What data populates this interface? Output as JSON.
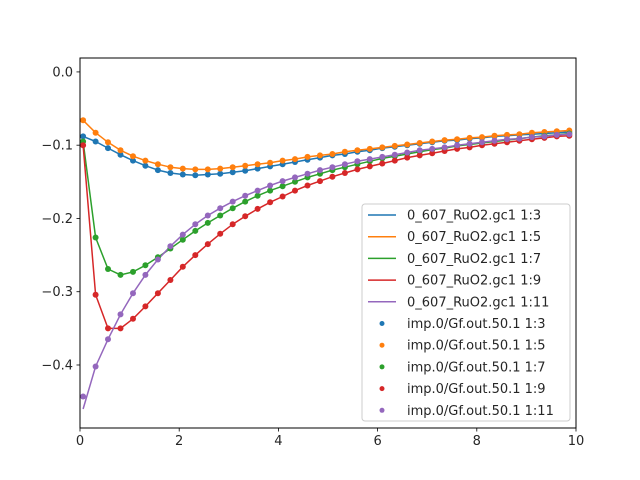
{
  "chart_data": {
    "type": "line",
    "title": "",
    "xlabel": "",
    "ylabel": "",
    "xlim": [
      0,
      10
    ],
    "ylim": [
      -0.486,
      0.019
    ],
    "grid": false,
    "legend_position": "lower-right",
    "xticks": [
      0,
      2,
      4,
      6,
      8,
      10
    ],
    "xtick_labels": [
      "0",
      "2",
      "4",
      "6",
      "8",
      "10"
    ],
    "yticks": [
      0.0,
      -0.1,
      -0.2,
      -0.3,
      -0.4
    ],
    "ytick_labels": [
      "0.0",
      "−0.1",
      "−0.2",
      "−0.3",
      "−0.4"
    ],
    "x": [
      0.063,
      0.314,
      0.565,
      0.817,
      1.068,
      1.319,
      1.571,
      1.822,
      2.073,
      2.325,
      2.576,
      2.827,
      3.079,
      3.33,
      3.581,
      3.833,
      4.084,
      4.335,
      4.587,
      4.838,
      5.089,
      5.341,
      5.592,
      5.843,
      6.095,
      6.346,
      6.597,
      6.849,
      7.1,
      7.351,
      7.603,
      7.854,
      8.105,
      8.357,
      8.608,
      8.859,
      9.111,
      9.362,
      9.613,
      9.865
    ],
    "series": [
      {
        "name": "0_607_RuO2.gc1 1:3",
        "style": "line",
        "color": "#1f77b4",
        "values": [
          -0.088,
          -0.095,
          -0.104,
          -0.113,
          -0.121,
          -0.128,
          -0.134,
          -0.138,
          -0.14,
          -0.141,
          -0.14,
          -0.139,
          -0.137,
          -0.135,
          -0.132,
          -0.129,
          -0.126,
          -0.123,
          -0.12,
          -0.117,
          -0.114,
          -0.112,
          -0.109,
          -0.107,
          -0.104,
          -0.102,
          -0.1,
          -0.098,
          -0.096,
          -0.094,
          -0.093,
          -0.091,
          -0.09,
          -0.088,
          -0.087,
          -0.086,
          -0.085,
          -0.084,
          -0.083,
          -0.082
        ]
      },
      {
        "name": "0_607_RuO2.gc1 1:5",
        "style": "line",
        "color": "#ff7f0e",
        "values": [
          -0.066,
          -0.083,
          -0.096,
          -0.107,
          -0.115,
          -0.121,
          -0.126,
          -0.13,
          -0.132,
          -0.133,
          -0.133,
          -0.132,
          -0.13,
          -0.128,
          -0.126,
          -0.124,
          -0.121,
          -0.119,
          -0.116,
          -0.114,
          -0.112,
          -0.109,
          -0.107,
          -0.105,
          -0.103,
          -0.101,
          -0.099,
          -0.097,
          -0.095,
          -0.093,
          -0.092,
          -0.09,
          -0.089,
          -0.087,
          -0.086,
          -0.085,
          -0.083,
          -0.082,
          -0.081,
          -0.08
        ]
      },
      {
        "name": "0_607_RuO2.gc1 1:7",
        "style": "line",
        "color": "#2ca02c",
        "values": [
          -0.095,
          -0.226,
          -0.269,
          -0.277,
          -0.273,
          -0.264,
          -0.253,
          -0.241,
          -0.229,
          -0.217,
          -0.206,
          -0.196,
          -0.186,
          -0.177,
          -0.169,
          -0.162,
          -0.156,
          -0.15,
          -0.144,
          -0.139,
          -0.134,
          -0.13,
          -0.126,
          -0.122,
          -0.118,
          -0.115,
          -0.112,
          -0.109,
          -0.106,
          -0.104,
          -0.101,
          -0.099,
          -0.097,
          -0.095,
          -0.093,
          -0.091,
          -0.089,
          -0.087,
          -0.086,
          -0.084
        ]
      },
      {
        "name": "0_607_RuO2.gc1 1:9",
        "style": "line",
        "color": "#d62728",
        "values": [
          -0.1,
          -0.304,
          -0.35,
          -0.35,
          -0.337,
          -0.32,
          -0.302,
          -0.284,
          -0.266,
          -0.25,
          -0.235,
          -0.221,
          -0.208,
          -0.197,
          -0.187,
          -0.178,
          -0.17,
          -0.162,
          -0.155,
          -0.149,
          -0.143,
          -0.138,
          -0.133,
          -0.129,
          -0.125,
          -0.121,
          -0.117,
          -0.114,
          -0.111,
          -0.108,
          -0.105,
          -0.103,
          -0.1,
          -0.098,
          -0.096,
          -0.094,
          -0.092,
          -0.09,
          -0.088,
          -0.087
        ]
      },
      {
        "name": "0_607_RuO2.gc1 1:11",
        "style": "line",
        "color": "#9467bd",
        "values": [
          -0.46,
          -0.402,
          -0.365,
          -0.331,
          -0.302,
          -0.277,
          -0.256,
          -0.238,
          -0.222,
          -0.208,
          -0.196,
          -0.186,
          -0.177,
          -0.169,
          -0.162,
          -0.155,
          -0.149,
          -0.144,
          -0.139,
          -0.134,
          -0.13,
          -0.126,
          -0.122,
          -0.119,
          -0.116,
          -0.113,
          -0.11,
          -0.107,
          -0.105,
          -0.103,
          -0.1,
          -0.098,
          -0.096,
          -0.094,
          -0.092,
          -0.091,
          -0.089,
          -0.088,
          -0.086,
          -0.085
        ]
      },
      {
        "name": "imp.0/Gf.out.50.1 1:3",
        "style": "dots",
        "color": "#1f77b4",
        "values": [
          -0.088,
          -0.095,
          -0.104,
          -0.113,
          -0.121,
          -0.128,
          -0.134,
          -0.138,
          -0.14,
          -0.141,
          -0.14,
          -0.139,
          -0.137,
          -0.135,
          -0.132,
          -0.129,
          -0.126,
          -0.123,
          -0.12,
          -0.117,
          -0.114,
          -0.112,
          -0.109,
          -0.107,
          -0.104,
          -0.102,
          -0.1,
          -0.098,
          -0.096,
          -0.094,
          -0.093,
          -0.091,
          -0.09,
          -0.088,
          -0.087,
          -0.086,
          -0.085,
          -0.084,
          -0.083,
          -0.082
        ]
      },
      {
        "name": "imp.0/Gf.out.50.1 1:5",
        "style": "dots",
        "color": "#ff7f0e",
        "values": [
          -0.066,
          -0.083,
          -0.096,
          -0.107,
          -0.115,
          -0.121,
          -0.126,
          -0.13,
          -0.132,
          -0.133,
          -0.133,
          -0.132,
          -0.13,
          -0.128,
          -0.126,
          -0.124,
          -0.121,
          -0.119,
          -0.116,
          -0.114,
          -0.112,
          -0.109,
          -0.107,
          -0.105,
          -0.103,
          -0.101,
          -0.099,
          -0.097,
          -0.095,
          -0.093,
          -0.092,
          -0.09,
          -0.089,
          -0.087,
          -0.086,
          -0.085,
          -0.083,
          -0.082,
          -0.081,
          -0.08
        ]
      },
      {
        "name": "imp.0/Gf.out.50.1 1:7",
        "style": "dots",
        "color": "#2ca02c",
        "values": [
          -0.095,
          -0.226,
          -0.269,
          -0.277,
          -0.273,
          -0.264,
          -0.253,
          -0.241,
          -0.229,
          -0.217,
          -0.206,
          -0.196,
          -0.186,
          -0.177,
          -0.169,
          -0.162,
          -0.156,
          -0.15,
          -0.144,
          -0.139,
          -0.134,
          -0.13,
          -0.126,
          -0.122,
          -0.118,
          -0.115,
          -0.112,
          -0.109,
          -0.106,
          -0.104,
          -0.101,
          -0.099,
          -0.097,
          -0.095,
          -0.093,
          -0.091,
          -0.089,
          -0.087,
          -0.086,
          -0.084
        ]
      },
      {
        "name": "imp.0/Gf.out.50.1 1:9",
        "style": "dots",
        "color": "#d62728",
        "values": [
          -0.1,
          -0.304,
          -0.35,
          -0.35,
          -0.337,
          -0.32,
          -0.302,
          -0.284,
          -0.266,
          -0.25,
          -0.235,
          -0.221,
          -0.208,
          -0.197,
          -0.187,
          -0.178,
          -0.17,
          -0.162,
          -0.155,
          -0.149,
          -0.143,
          -0.138,
          -0.133,
          -0.129,
          -0.125,
          -0.121,
          -0.117,
          -0.114,
          -0.111,
          -0.108,
          -0.105,
          -0.103,
          -0.1,
          -0.098,
          -0.096,
          -0.094,
          -0.092,
          -0.09,
          -0.088,
          -0.087
        ]
      },
      {
        "name": "imp.0/Gf.out.50.1 1:11",
        "style": "dots",
        "color": "#9467bd",
        "values": [
          -0.443,
          -0.402,
          -0.365,
          -0.331,
          -0.302,
          -0.277,
          -0.256,
          -0.238,
          -0.222,
          -0.208,
          -0.196,
          -0.186,
          -0.177,
          -0.169,
          -0.162,
          -0.155,
          -0.149,
          -0.144,
          -0.139,
          -0.134,
          -0.13,
          -0.126,
          -0.122,
          -0.119,
          -0.116,
          -0.113,
          -0.11,
          -0.107,
          -0.105,
          -0.103,
          -0.1,
          -0.098,
          -0.096,
          -0.094,
          -0.092,
          -0.091,
          -0.089,
          -0.088,
          -0.086,
          -0.085
        ]
      }
    ]
  }
}
